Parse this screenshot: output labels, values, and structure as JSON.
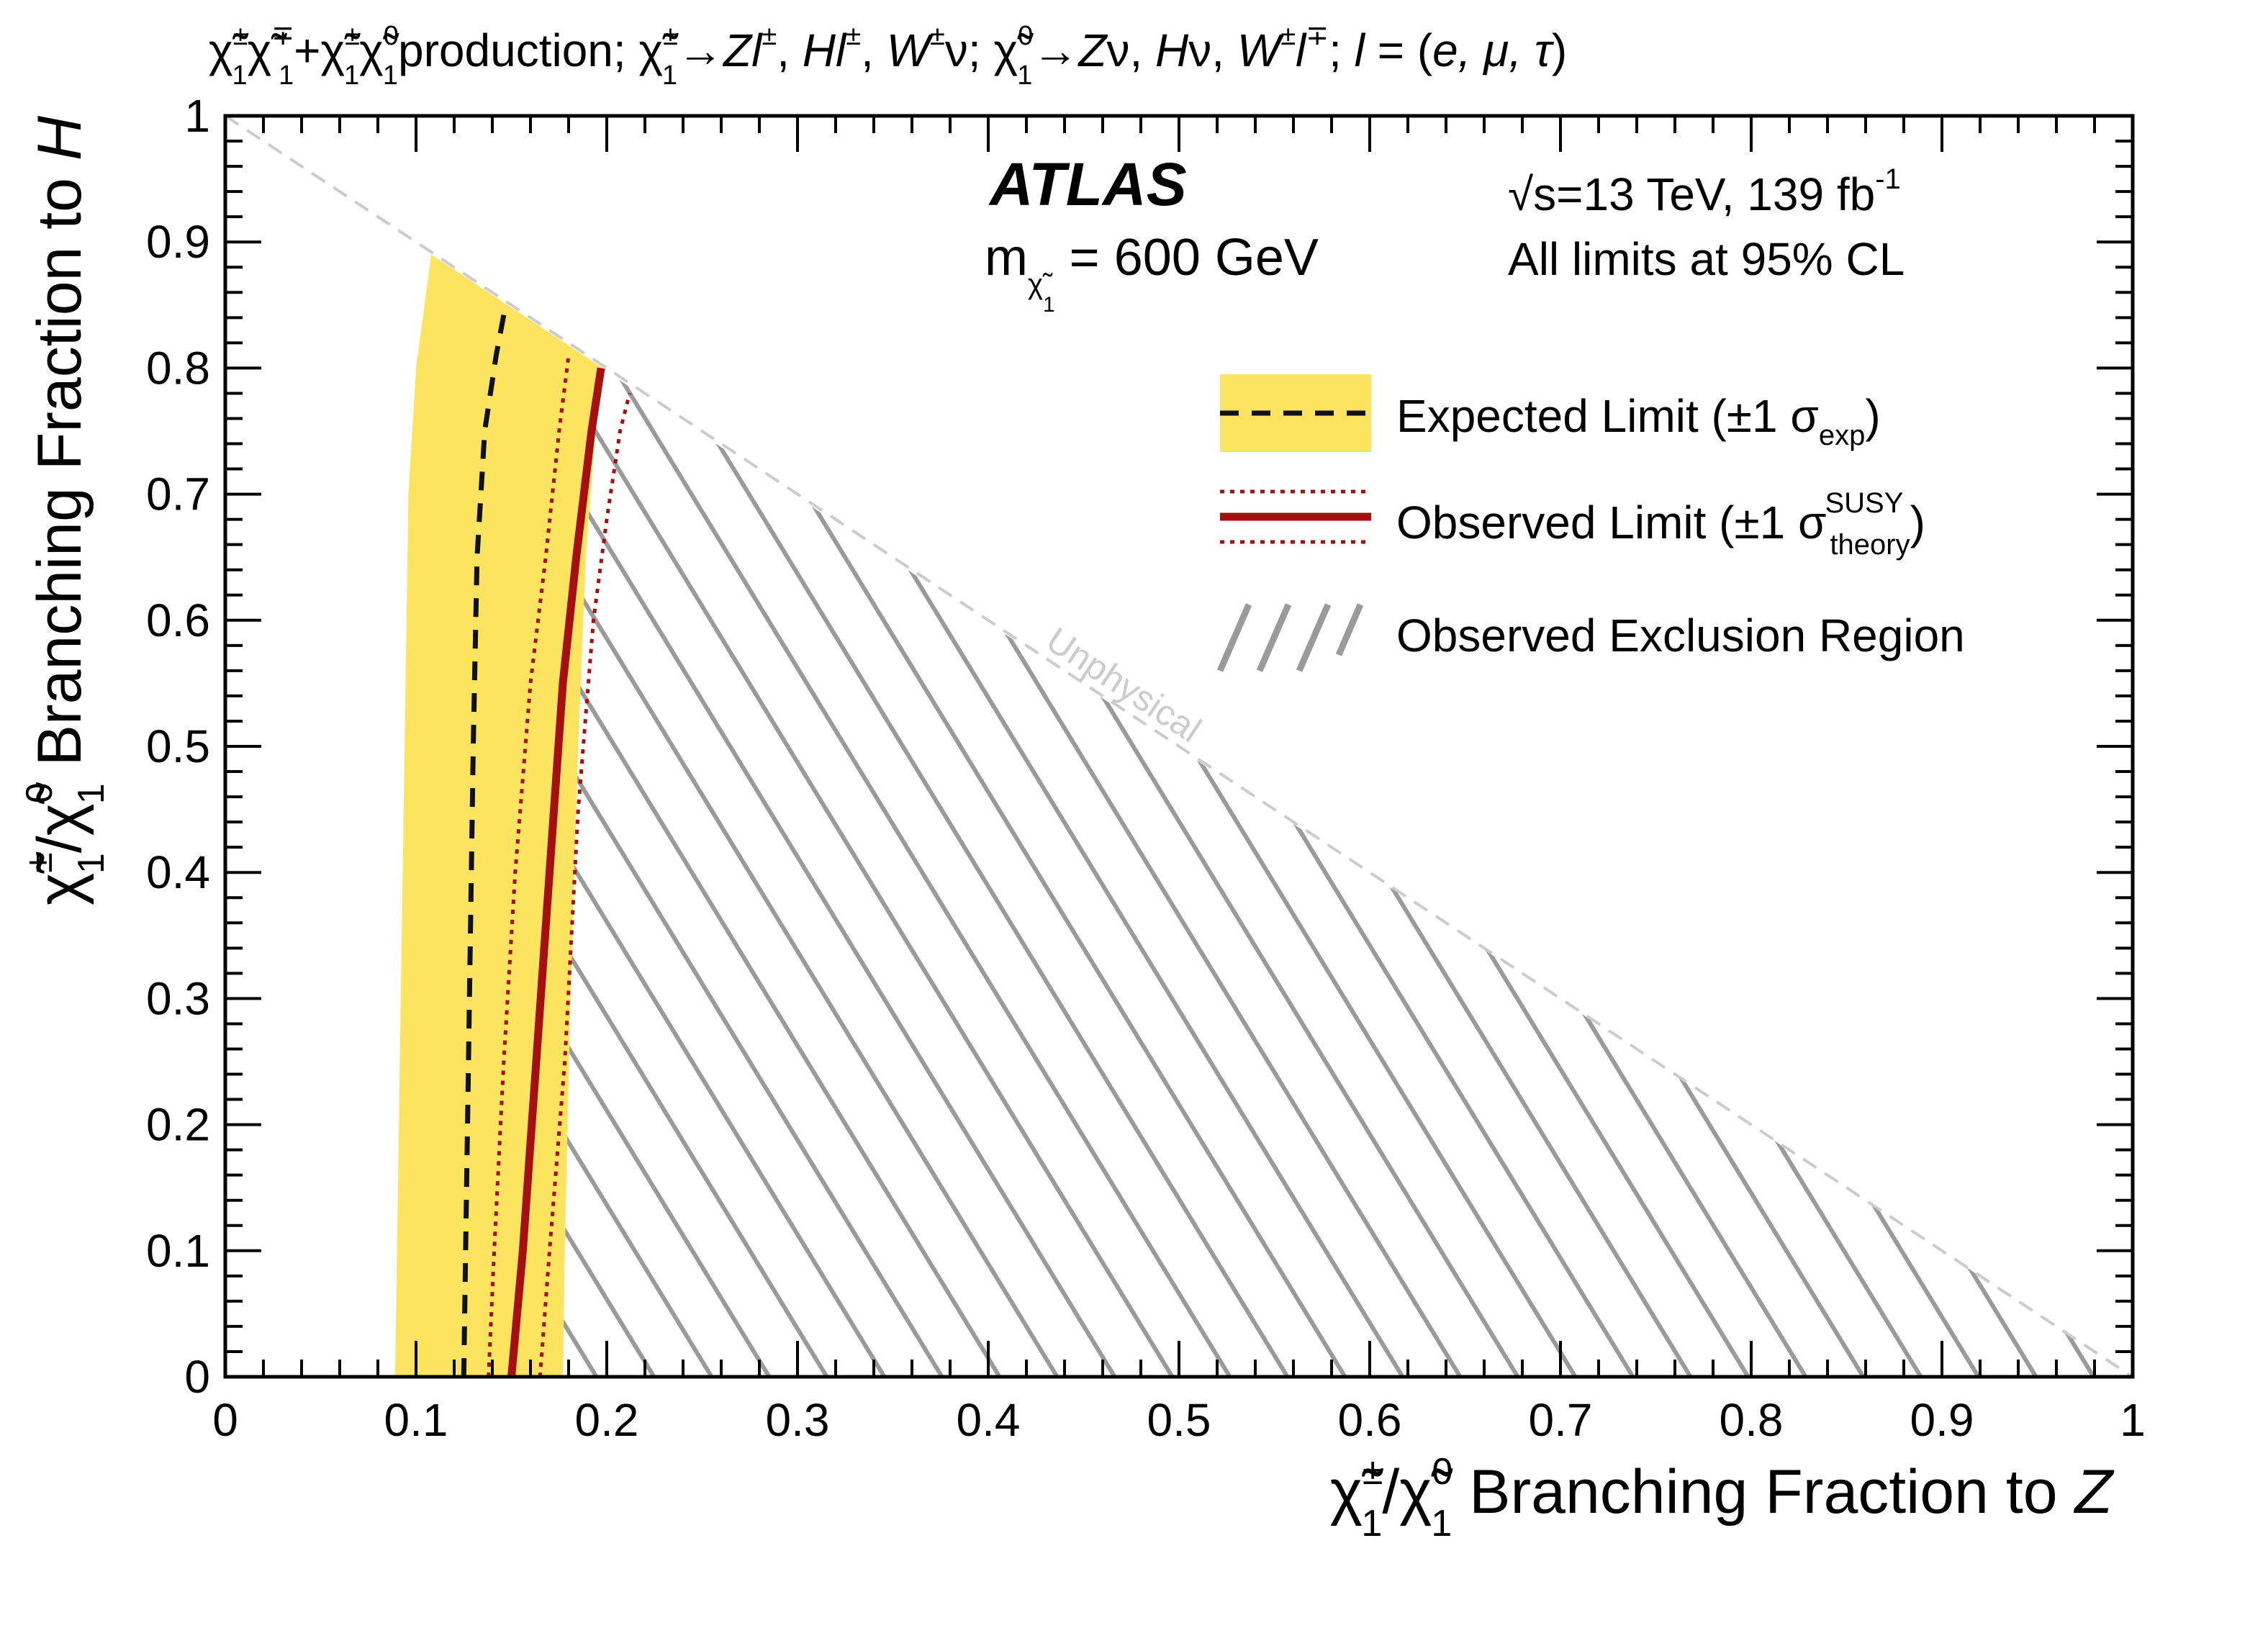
{
  "header": {
    "title": "χ̃±1χ̃∓1+χ̃±1χ̃01 production; χ̃±1→Zl±, Hl±, W±ν; χ̃01→Zν, Hν, W±l∓; l = (e, μ, τ)",
    "title_parts": {
      "part1": "production; ",
      "part2": "→",
      "part3": "Zl",
      "part4": ", ",
      "part5": "Hl",
      "part6": ", ",
      "part7": "W",
      "part8": "ν; ",
      "part9": "→",
      "part10": "Z",
      "part11": "ν, ",
      "part12": "H",
      "part13": "ν, ",
      "part14": "W",
      "part15": "l",
      "part16": "; ",
      "part17": "l",
      "part18": " = (",
      "part19": "e, μ, τ",
      "part20": ")"
    }
  },
  "annotations": {
    "experiment": "ATLAS",
    "mass_prefix": "m",
    "mass_value": " = 600 GeV",
    "sqrt_s": "s=13 TeV, 139 fb",
    "lumi_exp": "-1",
    "cl_note": "All limits at 95% CL",
    "unphysical": "Unphysical"
  },
  "legend": {
    "expected": "Expected Limit (±1 σ",
    "expected_sub": "exp",
    "observed": "Observed Limit (±1 σ",
    "observed_sup": "SUSY",
    "observed_sub": "theory",
    "exclusion": "Observed Exclusion Region",
    "close_paren": ")"
  },
  "chart_data": {
    "type": "line",
    "title": "χ̃±1χ̃∓1+χ̃±1χ̃01 production; χ̃±1→Zl±, Hl±, W±ν; χ̃01→Zν, Hν, W±l∓; l = (e, μ, τ)",
    "xlabel": "χ̃±1/χ̃01 Branching Fraction to Z",
    "ylabel": "χ̃±1/χ̃01 Branching Fraction to H",
    "xlabel_text": " Branching Fraction to ",
    "xlabel_italic": "Z",
    "ylabel_text": " Branching Fraction to ",
    "ylabel_italic": "H",
    "xlim": [
      0,
      1
    ],
    "ylim": [
      0,
      1
    ],
    "x_ticks": [
      "0",
      "0.1",
      "0.2",
      "0.3",
      "0.4",
      "0.5",
      "0.6",
      "0.7",
      "0.8",
      "0.9",
      "1"
    ],
    "y_ticks": [
      "0",
      "0.1",
      "0.2",
      "0.3",
      "0.4",
      "0.5",
      "0.6",
      "0.7",
      "0.8",
      "0.9",
      "1"
    ],
    "unphysical_boundary": {
      "x": [
        0,
        1
      ],
      "y": [
        1,
        0
      ]
    },
    "expected_band": {
      "left": {
        "x": [
          0.089,
          0.09,
          0.092,
          0.094,
          0.096,
          0.1,
          0.108
        ],
        "y": [
          0,
          0.1,
          0.3,
          0.5,
          0.7,
          0.8,
          0.89
        ]
      },
      "right": {
        "x": [
          0.177,
          0.178,
          0.181,
          0.185,
          0.189,
          0.194,
          0.198
        ],
        "y": [
          0,
          0.1,
          0.3,
          0.5,
          0.65,
          0.75,
          0.8
        ]
      }
    },
    "expected": {
      "x": [
        0.125,
        0.126,
        0.128,
        0.13,
        0.132,
        0.136,
        0.142,
        0.147
      ],
      "y": [
        0,
        0.1,
        0.3,
        0.5,
        0.65,
        0.75,
        0.81,
        0.85
      ]
    },
    "observed": {
      "x": [
        0.15,
        0.156,
        0.163,
        0.17,
        0.177,
        0.184,
        0.192,
        0.197
      ],
      "y": [
        0,
        0.1,
        0.25,
        0.4,
        0.55,
        0.65,
        0.75,
        0.8
      ]
    },
    "observed_minus": {
      "x": [
        0.138,
        0.141,
        0.146,
        0.152,
        0.16,
        0.168,
        0.175,
        0.18
      ],
      "y": [
        0,
        0.1,
        0.25,
        0.4,
        0.55,
        0.65,
        0.75,
        0.81
      ]
    },
    "observed_plus": {
      "x": [
        0.165,
        0.17,
        0.178,
        0.185,
        0.193,
        0.2,
        0.207,
        0.212
      ],
      "y": [
        0,
        0.1,
        0.25,
        0.45,
        0.6,
        0.68,
        0.75,
        0.78
      ]
    },
    "colors": {
      "band": "#fde460",
      "expected": "#111111",
      "observed": "#a50f0f",
      "hatch": "#9a9a9a",
      "boundary": "#cccccc"
    },
    "legend_position": "top-right",
    "grid": false
  }
}
